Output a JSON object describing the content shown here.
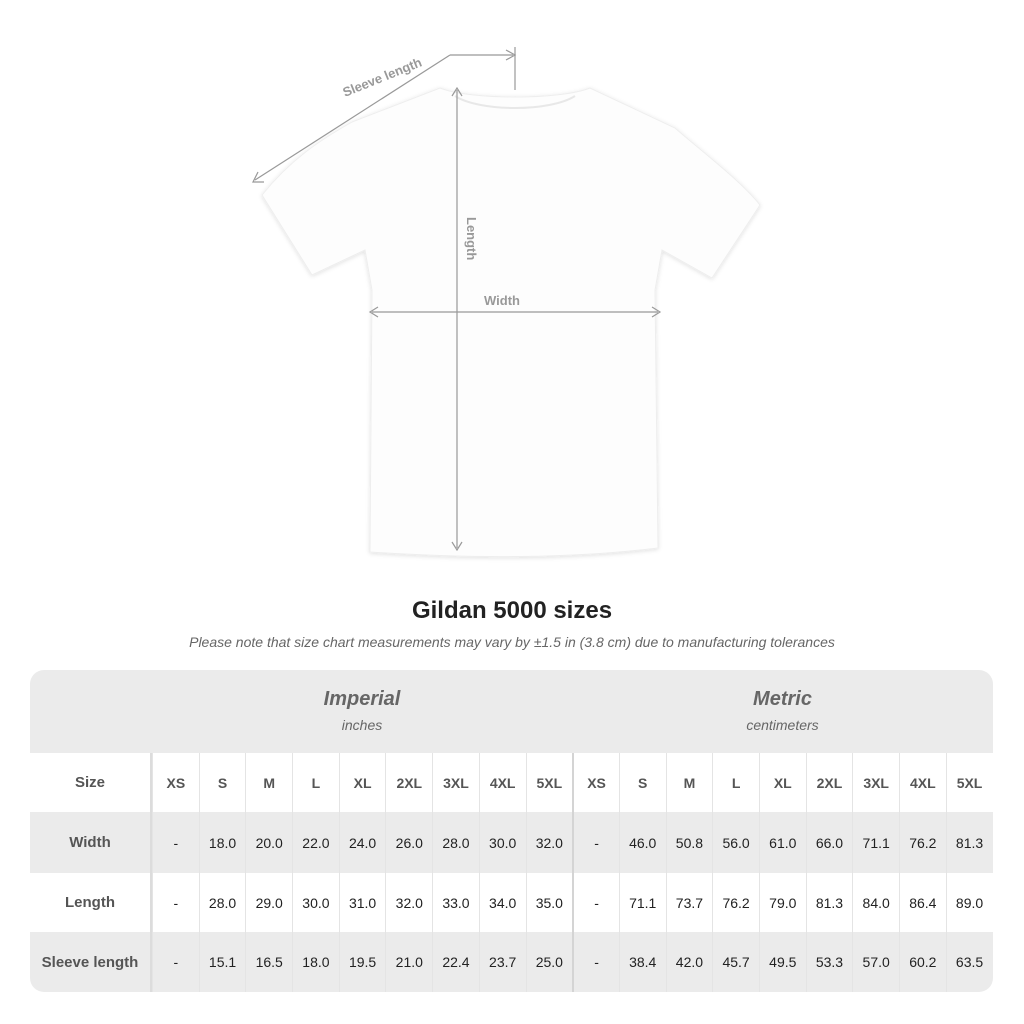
{
  "diagram": {
    "sleeve_label": "Sleeve length",
    "length_label": "Length",
    "width_label": "Width"
  },
  "title": "Gildan 5000 sizes",
  "note": "Please note that size chart measurements may vary by ±1.5 in (3.8 cm) due to manufacturing tolerances",
  "imperial": {
    "heading": "Imperial",
    "unit": "inches"
  },
  "metric": {
    "heading": "Metric",
    "unit": "centimeters"
  },
  "sizes": [
    "XS",
    "S",
    "M",
    "L",
    "XL",
    "2XL",
    "3XL",
    "4XL",
    "5XL"
  ],
  "size_label": "Size",
  "rows": [
    {
      "label": "Width",
      "imperial": [
        "-",
        "18.0",
        "20.0",
        "22.0",
        "24.0",
        "26.0",
        "28.0",
        "30.0",
        "32.0"
      ],
      "metric": [
        "-",
        "46.0",
        "50.8",
        "56.0",
        "61.0",
        "66.0",
        "71.1",
        "76.2",
        "81.3"
      ]
    },
    {
      "label": "Length",
      "imperial": [
        "-",
        "28.0",
        "29.0",
        "30.0",
        "31.0",
        "32.0",
        "33.0",
        "34.0",
        "35.0"
      ],
      "metric": [
        "-",
        "71.1",
        "73.7",
        "76.2",
        "79.0",
        "81.3",
        "84.0",
        "86.4",
        "89.0"
      ]
    },
    {
      "label": "Sleeve length",
      "imperial": [
        "-",
        "15.1",
        "16.5",
        "18.0",
        "19.5",
        "21.0",
        "22.4",
        "23.7",
        "25.0"
      ],
      "metric": [
        "-",
        "38.4",
        "42.0",
        "45.7",
        "49.5",
        "53.3",
        "57.0",
        "60.2",
        "63.5"
      ]
    }
  ],
  "colors": {
    "band": "#ebebeb",
    "line": "#999999"
  }
}
